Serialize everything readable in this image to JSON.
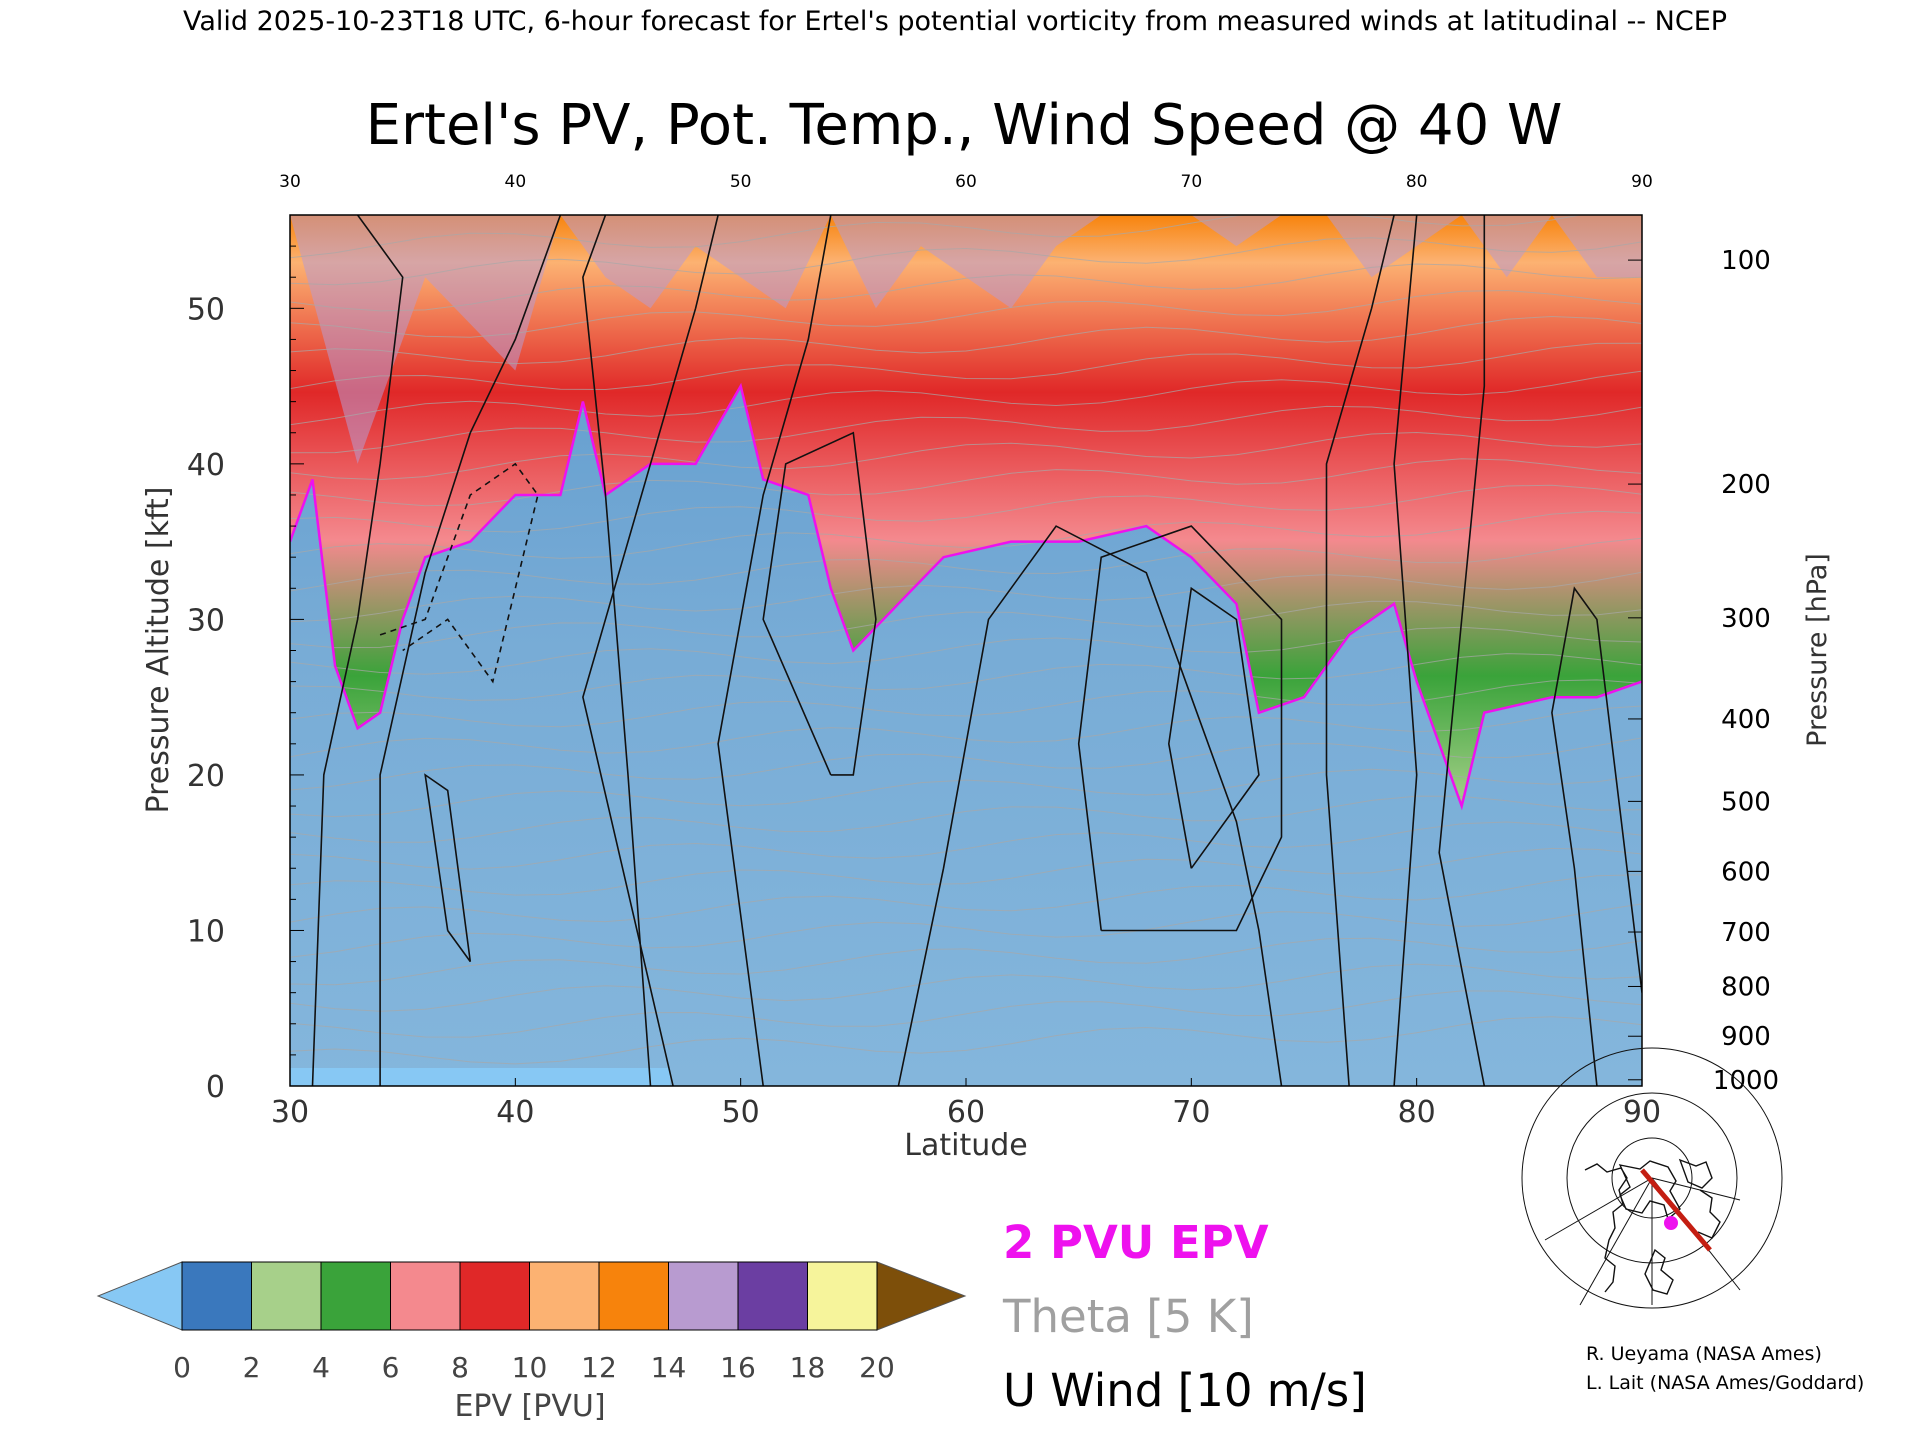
{
  "header": {
    "valid_line": "Valid 2025-10-23T18 UTC, 6-hour forecast for Ertel's potential vorticity from measured winds at latitudinal -- NCEP"
  },
  "chart_data": {
    "type": "heatmap",
    "title": "Ertel's PV, Pot. Temp., Wind Speed @ 40 W",
    "xlabel": "Latitude",
    "ylabel_left": "Pressure Altitude [kft]",
    "ylabel_right": "Pressure [hPa]",
    "xlim": [
      30,
      90
    ],
    "ylim": [
      0,
      56
    ],
    "x_ticks": [
      30,
      40,
      50,
      60,
      70,
      80,
      90
    ],
    "y_ticks": [
      0,
      10,
      20,
      30,
      40,
      50
    ],
    "pressure_ticks": [
      {
        "label": "100",
        "kft": 53.1
      },
      {
        "label": "200",
        "kft": 38.7
      },
      {
        "label": "300",
        "kft": 30.1
      },
      {
        "label": "400",
        "kft": 23.6
      },
      {
        "label": "500",
        "kft": 18.3
      },
      {
        "label": "600",
        "kft": 13.8
      },
      {
        "label": "700",
        "kft": 9.9
      },
      {
        "label": "800",
        "kft": 6.4
      },
      {
        "label": "900",
        "kft": 3.2
      },
      {
        "label": "1000",
        "kft": 0.4
      }
    ],
    "pv_2pvu_boundary_kft": [
      {
        "lat": 30,
        "kft": 35
      },
      {
        "lat": 31,
        "kft": 39
      },
      {
        "lat": 32,
        "kft": 27
      },
      {
        "lat": 33,
        "kft": 23
      },
      {
        "lat": 34,
        "kft": 24
      },
      {
        "lat": 35,
        "kft": 30
      },
      {
        "lat": 36,
        "kft": 34
      },
      {
        "lat": 38,
        "kft": 35
      },
      {
        "lat": 40,
        "kft": 38
      },
      {
        "lat": 42,
        "kft": 38
      },
      {
        "lat": 43,
        "kft": 44
      },
      {
        "lat": 44,
        "kft": 38
      },
      {
        "lat": 46,
        "kft": 40
      },
      {
        "lat": 48,
        "kft": 40
      },
      {
        "lat": 50,
        "kft": 45
      },
      {
        "lat": 51,
        "kft": 39
      },
      {
        "lat": 53,
        "kft": 38
      },
      {
        "lat": 54,
        "kft": 32
      },
      {
        "lat": 55,
        "kft": 28
      },
      {
        "lat": 57,
        "kft": 31
      },
      {
        "lat": 59,
        "kft": 34
      },
      {
        "lat": 62,
        "kft": 35
      },
      {
        "lat": 65,
        "kft": 35
      },
      {
        "lat": 68,
        "kft": 36
      },
      {
        "lat": 70,
        "kft": 34
      },
      {
        "lat": 72,
        "kft": 31
      },
      {
        "lat": 73,
        "kft": 24
      },
      {
        "lat": 75,
        "kft": 25
      },
      {
        "lat": 77,
        "kft": 29
      },
      {
        "lat": 79,
        "kft": 31
      },
      {
        "lat": 80,
        "kft": 26
      },
      {
        "lat": 81,
        "kft": 22
      },
      {
        "lat": 82,
        "kft": 18
      },
      {
        "lat": 83,
        "kft": 24
      },
      {
        "lat": 86,
        "kft": 25
      },
      {
        "lat": 88,
        "kft": 25
      },
      {
        "lat": 90,
        "kft": 26
      }
    ],
    "pv_dome_peaks": [
      {
        "lat": 30,
        "kft": 56
      },
      {
        "lat": 33,
        "kft": 40
      },
      {
        "lat": 36,
        "kft": 52
      },
      {
        "lat": 40,
        "kft": 46
      },
      {
        "lat": 42,
        "kft": 56
      },
      {
        "lat": 44,
        "kft": 52
      },
      {
        "lat": 46,
        "kft": 50
      },
      {
        "lat": 48,
        "kft": 54
      },
      {
        "lat": 52,
        "kft": 50
      },
      {
        "lat": 54,
        "kft": 56
      },
      {
        "lat": 56,
        "kft": 50
      },
      {
        "lat": 58,
        "kft": 54
      },
      {
        "lat": 60,
        "kft": 52
      },
      {
        "lat": 62,
        "kft": 50
      },
      {
        "lat": 64,
        "kft": 54
      },
      {
        "lat": 66,
        "kft": 56
      },
      {
        "lat": 68,
        "kft": 56
      },
      {
        "lat": 70,
        "kft": 56
      },
      {
        "lat": 72,
        "kft": 54
      },
      {
        "lat": 74,
        "kft": 56
      },
      {
        "lat": 76,
        "kft": 56
      },
      {
        "lat": 78,
        "kft": 52
      },
      {
        "lat": 80,
        "kft": 54
      },
      {
        "lat": 82,
        "kft": 56
      },
      {
        "lat": 84,
        "kft": 52
      },
      {
        "lat": 86,
        "kft": 56
      },
      {
        "lat": 88,
        "kft": 52
      },
      {
        "lat": 90,
        "kft": 52
      }
    ],
    "colorbar": {
      "label": "EPV [PVU]",
      "ticks": [
        "0",
        "2",
        "4",
        "6",
        "8",
        "10",
        "12",
        "14",
        "16",
        "18",
        "20"
      ],
      "colors": [
        "#3a78bd",
        "#a7d08a",
        "#3aa33a",
        "#f4898e",
        "#e02828",
        "#fcb272",
        "#f7830c",
        "#b89bd0",
        "#6b3ea2",
        "#f6f49b"
      ],
      "under_color": "#87c8f4",
      "over_color": "#7d4f0a"
    },
    "legend": [
      {
        "label": "2 PVU EPV",
        "color": "#ee11ee"
      },
      {
        "label": "Theta [5 K]",
        "color": "#a0a0a0"
      },
      {
        "label": "U Wind [10 m/s]",
        "color": "#000000"
      }
    ],
    "credits": [
      "R. Ueyama (NASA Ames)",
      "L. Lait (NASA Ames/Goddard)"
    ]
  }
}
